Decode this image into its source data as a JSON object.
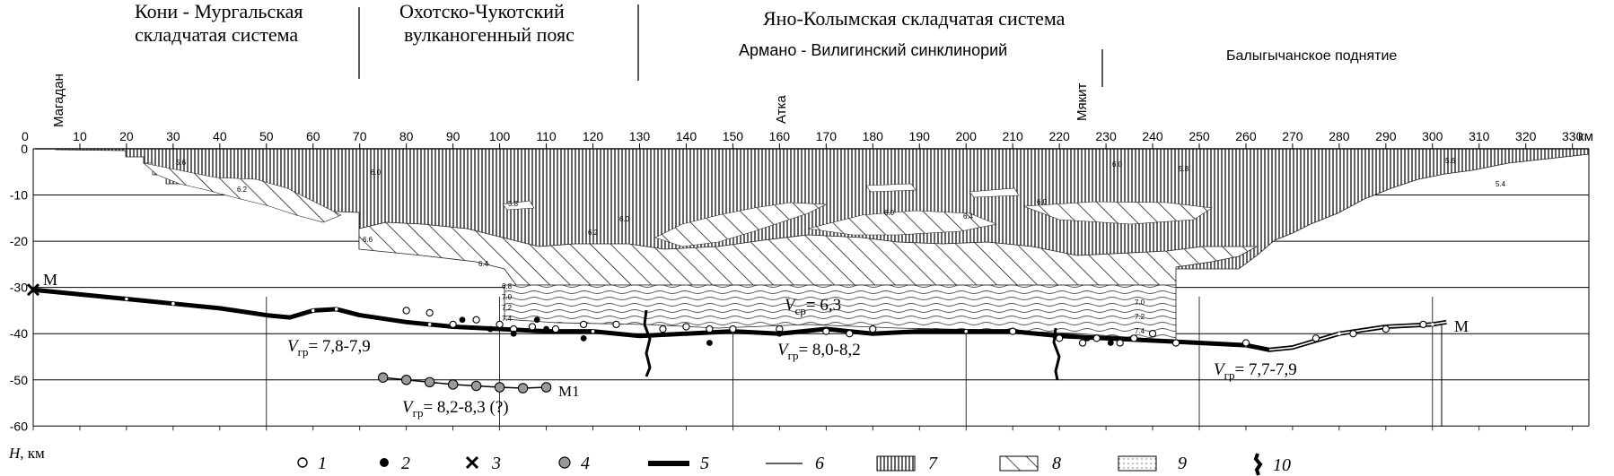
{
  "regions": {
    "koni": [
      "Кони - Мургальская",
      "складчатая система"
    ],
    "okhotsk": [
      "Охотско-Чукотский",
      "вулканогенный пояс"
    ],
    "yano": "Яно-Колымская складчатая система",
    "armano": "Армано - Вилигинский синклинорий",
    "balyg": "Балыгычанское поднятие"
  },
  "places": {
    "magadan": "Магадан",
    "atka": "Атка",
    "myakit": "Мякит"
  },
  "axes": {
    "x_unit": "км",
    "y_unit_label": "H, км",
    "x_ticks": [
      10,
      20,
      30,
      40,
      50,
      60,
      70,
      80,
      90,
      100,
      110,
      120,
      130,
      140,
      150,
      160,
      170,
      180,
      190,
      200,
      210,
      220,
      230,
      240,
      250,
      260,
      270,
      280,
      290,
      300,
      310,
      320,
      330
    ],
    "y_ticks": [
      0,
      -10,
      -20,
      -30,
      -40,
      -50,
      -60
    ],
    "x_range": [
      0,
      338
    ],
    "y_range": [
      0,
      -62
    ]
  },
  "moho_labels": {
    "left": "M",
    "right": "M",
    "m1": "M1"
  },
  "velocity_labels": {
    "v_crust": "V​",
    "a": {
      "sym": "V",
      "sub": "гр",
      "val": "= 7,8-7,9"
    },
    "b": {
      "sym": "V",
      "sub": "гр",
      "val": "= 8,0-8,2"
    },
    "c": {
      "sym": "V",
      "sub": "гр",
      "val": "= 7,7-7,9"
    },
    "d": {
      "sym": "V",
      "sub": "гр",
      "val": "= 8,2-8,3 (?)"
    },
    "e": {
      "sym": "V",
      "sub": "ср",
      "val": "= 6,3"
    }
  },
  "small_velocities": [
    "5.6",
    "5.8",
    "6.0",
    "6.2",
    "6.4",
    "6.5",
    "6.6",
    "6.8",
    "7.0",
    "7.2",
    "7.4",
    "5.4"
  ],
  "legend": [
    "1",
    "2",
    "3",
    "4",
    "5",
    "6",
    "7",
    "8",
    "9",
    "10"
  ],
  "chart_data": {
    "type": "line",
    "series": [
      {
        "name": "M",
        "x": [
          0,
          10,
          20,
          30,
          40,
          50,
          55,
          60,
          65,
          70,
          80,
          90,
          100,
          110,
          120,
          130,
          140,
          150,
          160,
          170,
          180,
          190,
          200,
          210,
          220,
          230,
          240,
          250,
          260,
          265,
          270,
          280,
          290,
          300,
          303
        ],
        "y": [
          -30.5,
          -31.5,
          -32.5,
          -33.5,
          -34.5,
          -36,
          -36.5,
          -35,
          -34.7,
          -36,
          -37.5,
          -38.5,
          -39,
          -39.5,
          -39.5,
          -40.5,
          -40,
          -39.5,
          -40,
          -39,
          -40,
          -39.5,
          -39.5,
          -39.5,
          -40.5,
          -41,
          -41.5,
          -42,
          -42.5,
          -43.5,
          -43,
          -40,
          -38.5,
          -38,
          -37.5
        ]
      },
      {
        "name": "M1",
        "x": [
          75,
          80,
          85,
          90,
          95,
          100,
          105,
          110
        ],
        "y": [
          -49.5,
          -50,
          -50.5,
          -51,
          -51.3,
          -51.6,
          -51.8,
          -51.6
        ]
      }
    ],
    "points_type1": [
      [
        80,
        -35
      ],
      [
        85,
        -35.5
      ],
      [
        90,
        -38
      ],
      [
        95,
        -37
      ],
      [
        100,
        -38
      ],
      [
        103,
        -39
      ],
      [
        107,
        -38.5
      ],
      [
        112,
        -39
      ],
      [
        118,
        -38
      ],
      [
        125,
        -38
      ],
      [
        135,
        -39
      ],
      [
        140,
        -38.5
      ],
      [
        145,
        -39
      ],
      [
        150,
        -39
      ],
      [
        160,
        -39
      ],
      [
        170,
        -39.5
      ],
      [
        175,
        -40
      ],
      [
        180,
        -39
      ],
      [
        210,
        -39.5
      ],
      [
        220,
        -41
      ],
      [
        225,
        -42
      ],
      [
        228,
        -41
      ],
      [
        233,
        -42
      ],
      [
        236,
        -41
      ],
      [
        240,
        -40
      ],
      [
        245,
        -42
      ],
      [
        260,
        -42
      ],
      [
        275,
        -41
      ],
      [
        283,
        -40
      ],
      [
        290,
        -39
      ],
      [
        298,
        -38
      ]
    ],
    "points_type2": [
      [
        92,
        -37
      ],
      [
        98,
        -39
      ],
      [
        103,
        -40
      ],
      [
        108,
        -37
      ],
      [
        110,
        -39
      ],
      [
        118,
        -41
      ],
      [
        145,
        -42
      ],
      [
        160,
        -40
      ],
      [
        226,
        -41
      ],
      [
        231,
        -42
      ]
    ],
    "xlim": [
      0,
      338
    ],
    "ylim": [
      -62,
      0
    ]
  }
}
